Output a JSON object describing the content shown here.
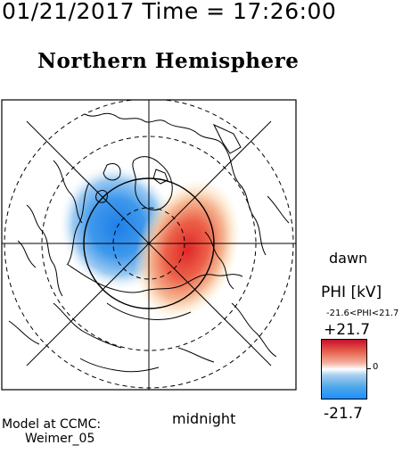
{
  "header": {
    "time_line": "01/21/2017 Time = 17:26:00",
    "hemisphere": "Northern Hemisphere"
  },
  "map": {
    "dawn_label": "dawn",
    "midnight_label": "midnight",
    "positive_color": "#e8604c",
    "negative_color": "#1e90ff"
  },
  "colorbar": {
    "title": "PHI [kV]",
    "range_text": "-21.6<PHI<21.7",
    "max_label": "+21.7",
    "min_label": "-21.7",
    "zero_label": "0"
  },
  "footer": {
    "model_line1": "Model at CCMC:",
    "model_line2": "Weimer_05"
  }
}
